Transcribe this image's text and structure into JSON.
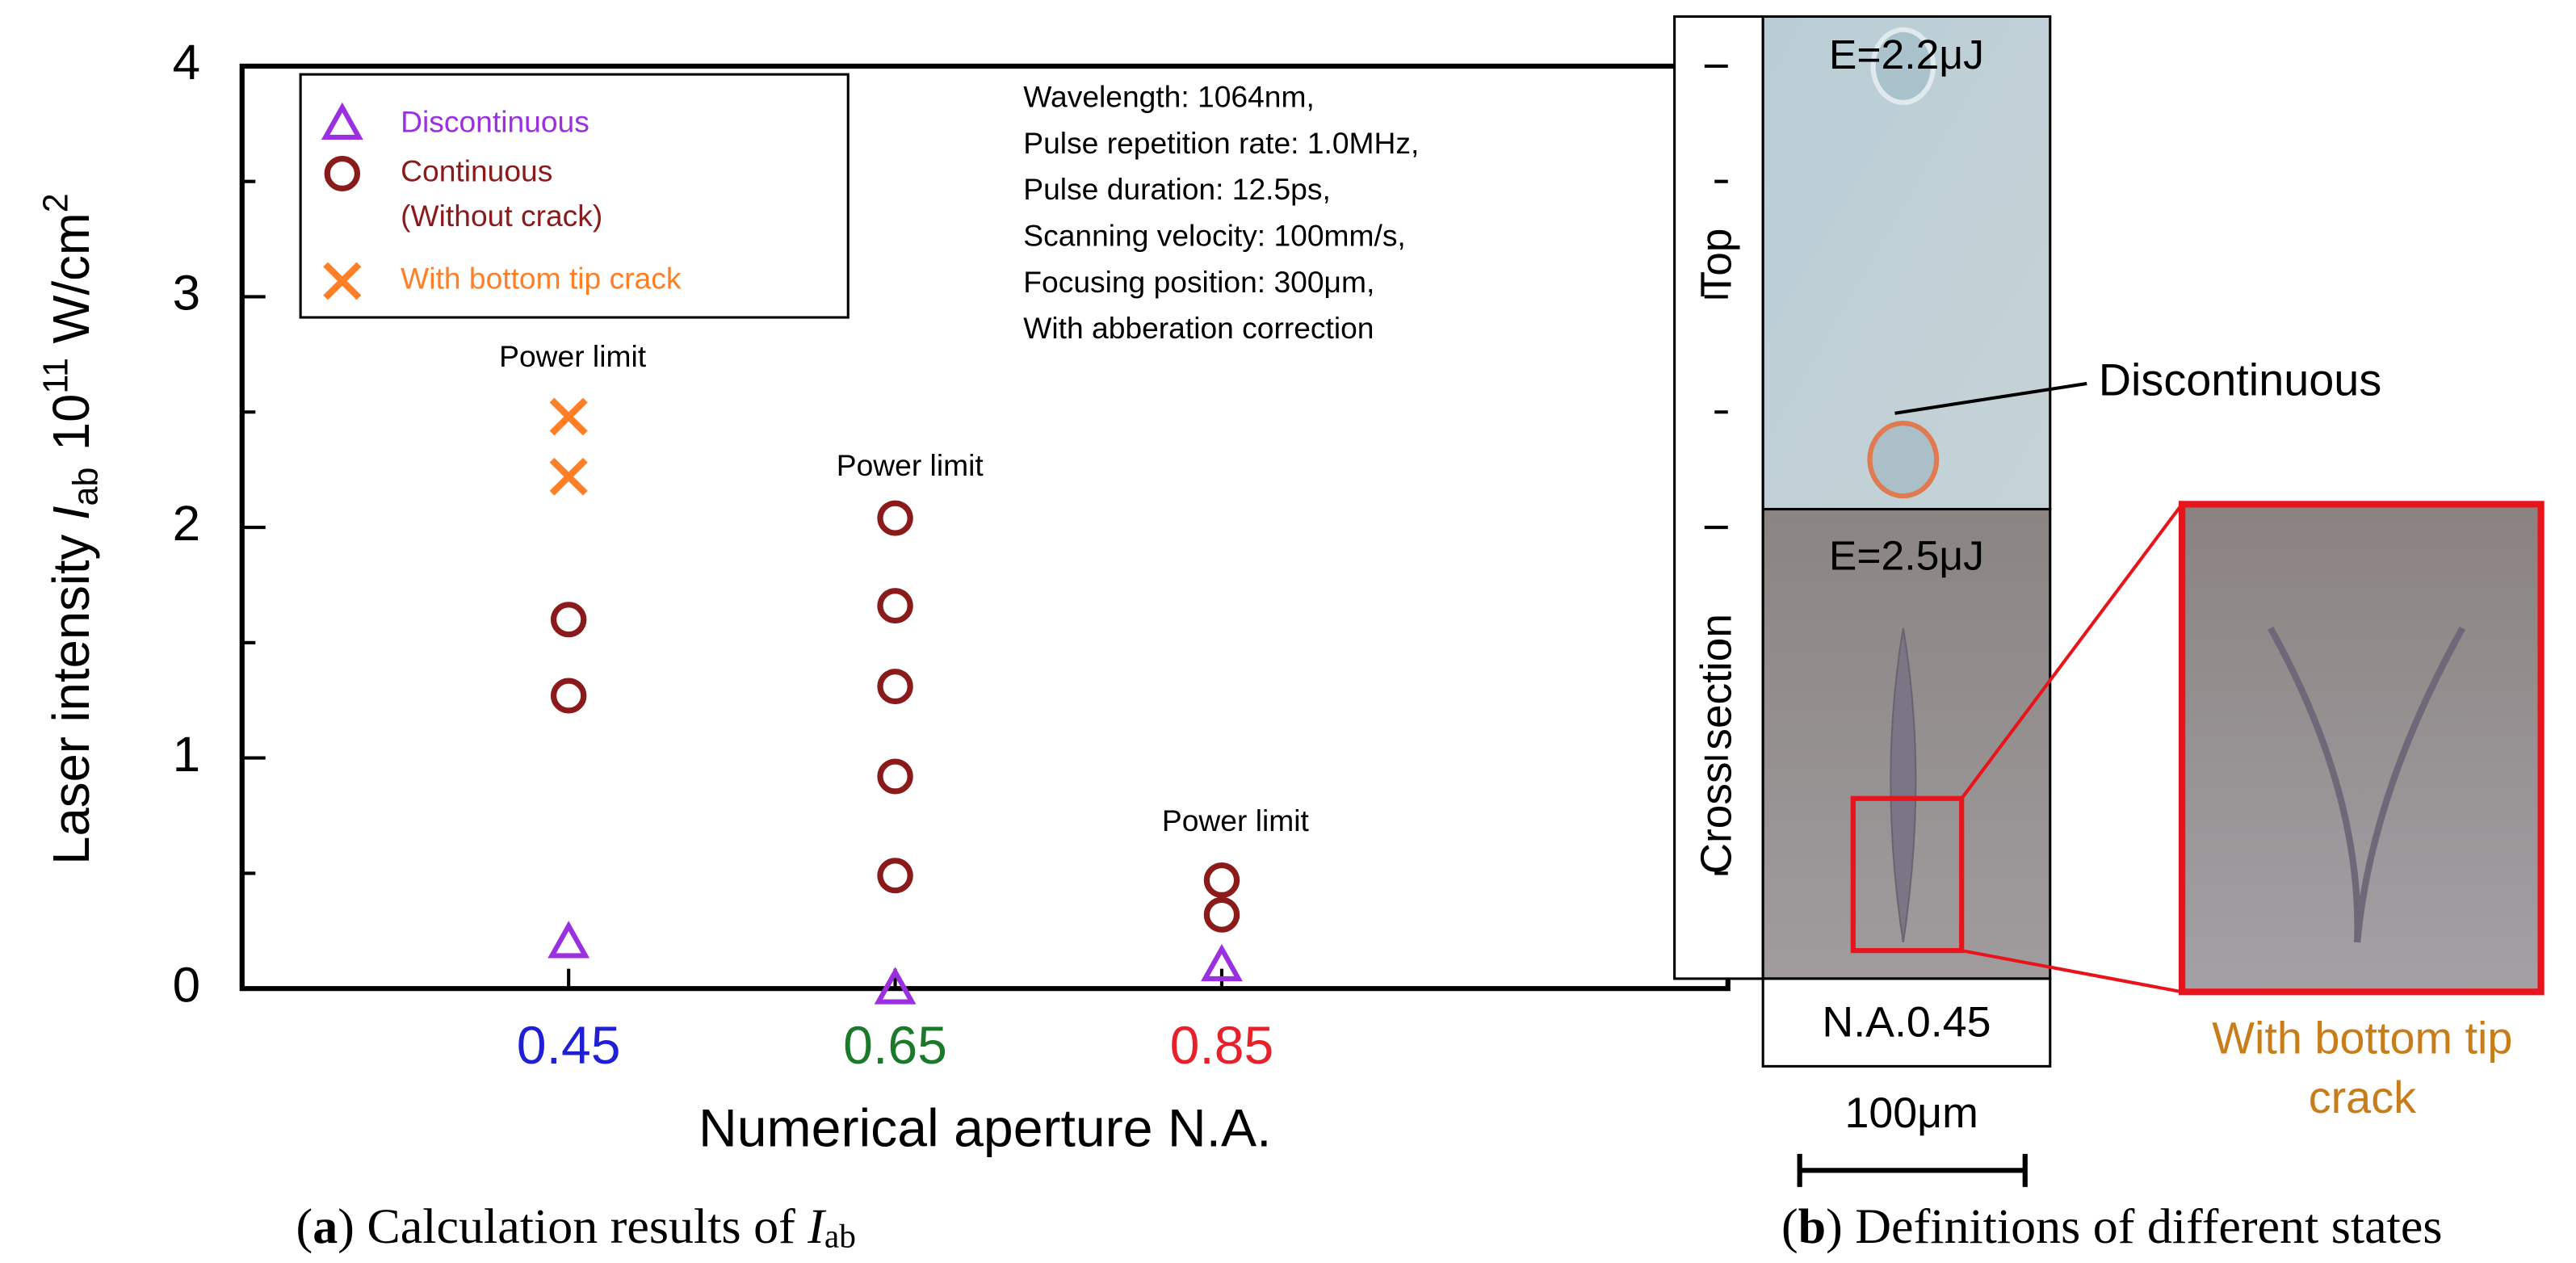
{
  "chart_data": {
    "type": "scatter",
    "ylabel": [
      "Laser intensity ",
      "I",
      "ab",
      "10",
      "11",
      " W/cm",
      "2"
    ],
    "xlabel": "Numerical aperture  N.A.",
    "xlim": [
      0.25,
      1.16
    ],
    "xticks": [
      0.45,
      0.65,
      0.85
    ],
    "xtick_colors": [
      "#1f1fd6",
      "#1a7a2a",
      "#e8202a"
    ],
    "ylim": [
      0,
      4
    ],
    "yticks": [
      0,
      1,
      2,
      3,
      4
    ],
    "series": [
      {
        "name": "Discontinuous",
        "marker": "triangle",
        "color": "#9b30e0",
        "x": [
          0.45,
          0.65,
          0.85
        ],
        "values": [
          0.2,
          0.0,
          0.1
        ]
      },
      {
        "name": "Continuous",
        "sublabel": "(Without crack)",
        "marker": "circle",
        "color": "#8b1a1a",
        "x": [
          0.45,
          0.45,
          0.65,
          0.65,
          0.65,
          0.65,
          0.65,
          0.85,
          0.85
        ],
        "values": [
          1.27,
          1.6,
          0.49,
          0.92,
          1.31,
          1.66,
          2.04,
          0.32,
          0.47
        ]
      },
      {
        "name": "With bottom tip crack",
        "marker": "cross",
        "color": "#ff7f27",
        "x": [
          0.45,
          0.45
        ],
        "values": [
          2.22,
          2.48
        ]
      }
    ],
    "annotations": [
      "Power limit",
      "Power limit",
      "Power limit"
    ],
    "conditions": [
      "Wavelength: 1064nm,",
      "Pulse repetition rate: 1.0MHz,",
      "Pulse duration: 12.5ps,",
      "Scanning velocity: 100mm/s,",
      "Focusing position: 300μm,",
      "With abberation correction"
    ],
    "caption": [
      "(",
      "a",
      ") Calculation results of ",
      "I",
      "ab"
    ]
  },
  "panel_b": {
    "top_label": "Top",
    "top_energy": "E=2.2μJ",
    "section_label": "Cross section",
    "section_energy": "E=2.5μJ",
    "callout": "Discontinuous",
    "aperture": "N.A.0.45",
    "scale": "100μm",
    "crack_label": [
      "With bottom tip",
      "crack"
    ],
    "caption": [
      "(",
      "b",
      ") Definitions of different states"
    ]
  }
}
